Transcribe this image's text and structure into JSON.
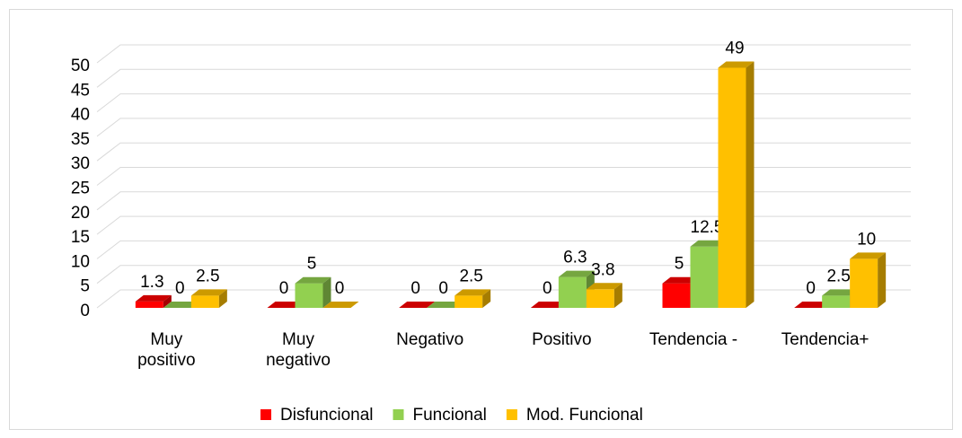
{
  "chart_data": {
    "type": "bar3d",
    "categories": [
      "Muy positivo",
      "Muy negativo",
      "Negativo",
      "Positivo",
      "Tendencia -",
      "Tendencia+"
    ],
    "series": [
      {
        "name": "Disfuncional",
        "color": "#ff0000",
        "values": [
          1.3,
          0,
          0,
          0,
          5,
          0
        ]
      },
      {
        "name": "Funcional",
        "color": "#92d050",
        "values": [
          0,
          5,
          0,
          6.3,
          12.5,
          2.5
        ]
      },
      {
        "name": "Mod. Funcional",
        "color": "#ffc000",
        "values": [
          2.5,
          0,
          2.5,
          3.8,
          49,
          10
        ]
      }
    ],
    "ylim": [
      0,
      50
    ],
    "yticks": [
      0,
      5,
      10,
      15,
      20,
      25,
      30,
      35,
      40,
      45,
      50
    ],
    "grid": true,
    "legend": "bottom"
  }
}
